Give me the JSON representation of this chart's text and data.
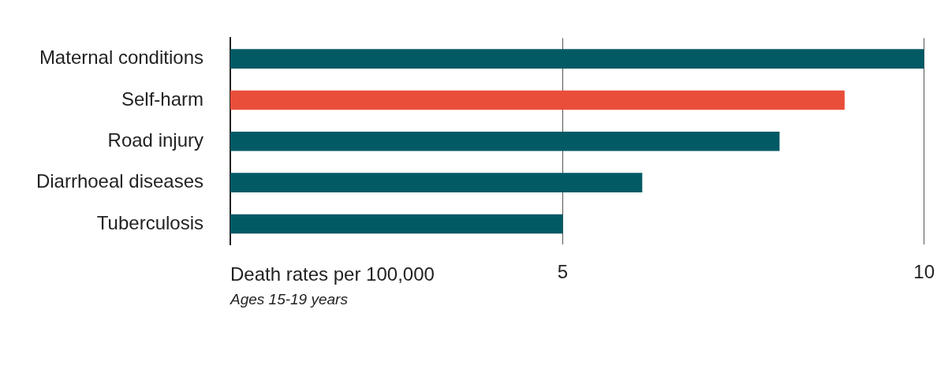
{
  "chart_data": {
    "type": "bar",
    "orientation": "horizontal",
    "categories": [
      "Maternal conditions",
      "Self-harm",
      "Road injury",
      "Diarrhoeal diseases",
      "Tuberculosis"
    ],
    "values": [
      10,
      8.9,
      8.0,
      6.1,
      5.0
    ],
    "colors": [
      "#025a65",
      "#e84e3a",
      "#025a65",
      "#025a65",
      "#025a65"
    ],
    "xlim": [
      0.4,
      10
    ],
    "xticks": [
      5,
      10
    ],
    "xlabel": "Death rates per 100,000",
    "annotations": [
      "Ages 15-19 years"
    ],
    "grid": "x",
    "legend": false
  }
}
